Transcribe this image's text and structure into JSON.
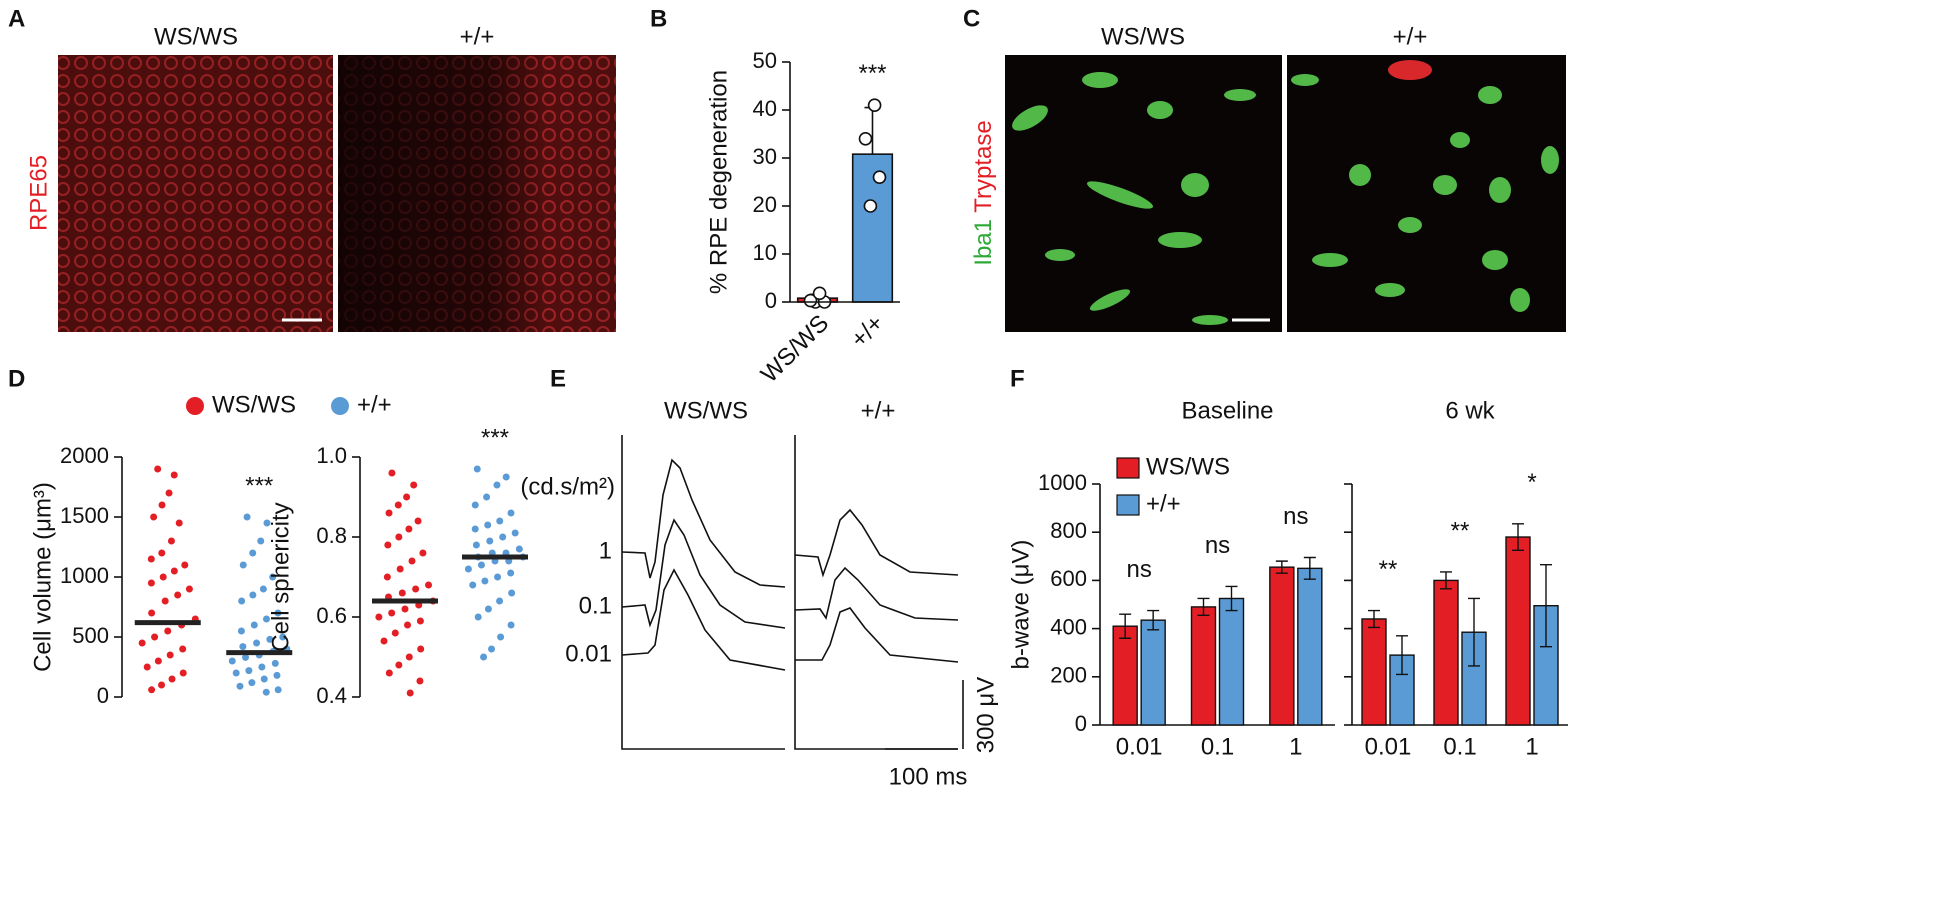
{
  "figure": {
    "panel_labels": [
      "A",
      "B",
      "C",
      "D",
      "E",
      "F"
    ],
    "A": {
      "titles": [
        "WS/WS",
        "+/+"
      ],
      "stain": "RPE65"
    },
    "C": {
      "titles": [
        "WS/WS",
        "+/+"
      ],
      "stain_green": "Iba1",
      "stain_red": "Tryptase"
    },
    "E": {
      "titles": [
        "WS/WS",
        "+/+"
      ],
      "unit": "(cd.s/m²)",
      "intensities": [
        "1",
        "0.1",
        "0.01"
      ],
      "scale_y": "300 μV",
      "scale_x": "100 ms"
    }
  },
  "chart_data": [
    {
      "type": "bar",
      "ylabel": "% RPE degeneration",
      "categories": [
        "WS/WS",
        "+/+"
      ],
      "values": [
        0.8,
        30.8
      ],
      "errors": [
        0.8,
        9.7
      ],
      "points": [
        [
          0,
          0,
          0.3,
          1.8
        ],
        [
          20,
          26,
          34,
          41
        ]
      ],
      "colors": [
        "#e31e24",
        "#5b9bd5"
      ],
      "ylim": [
        0,
        50
      ],
      "yticks": [
        0,
        10,
        20,
        30,
        40,
        50
      ],
      "annotation": "***"
    },
    {
      "type": "strip",
      "series": [
        {
          "name": "WS/WS",
          "color": "#e31e24"
        },
        {
          "name": "+/+",
          "color": "#5b9bd5"
        }
      ],
      "subplots": [
        {
          "ylabel": "Cell volume (μm³)",
          "ylim": [
            0,
            2000
          ],
          "yticks": [
            0,
            500,
            1000,
            1500,
            2000
          ],
          "annotation": "***",
          "values": [
            [
              1900,
              1850,
              1700,
              1600,
              1500,
              1450,
              1300,
              1200,
              1150,
              1100,
              1050,
              1000,
              950,
              900,
              850,
              800,
              700,
              650,
              600,
              550,
              500,
              450,
              400,
              350,
              300,
              250,
              200,
              150,
              100,
              60
            ],
            [
              1500,
              1450,
              1300,
              1200,
              1100,
              1000,
              900,
              850,
              800,
              700,
              650,
              600,
              550,
              500,
              480,
              450,
              420,
              400,
              380,
              350,
              330,
              300,
              280,
              250,
              220,
              200,
              180,
              150,
              120,
              90,
              60,
              40
            ]
          ],
          "means": [
            620,
            370
          ]
        },
        {
          "ylabel": "Cell sphericity",
          "ylim": [
            0.4,
            1
          ],
          "yticks": [
            0.4,
            0.6,
            0.8,
            {
              "value": 1,
              "label": "1.0"
            }
          ],
          "annotation": "***",
          "values": [
            [
              0.96,
              0.93,
              0.9,
              0.88,
              0.86,
              0.84,
              0.82,
              0.8,
              0.78,
              0.76,
              0.74,
              0.72,
              0.7,
              0.68,
              0.67,
              0.66,
              0.65,
              0.64,
              0.63,
              0.62,
              0.61,
              0.6,
              0.59,
              0.58,
              0.56,
              0.54,
              0.52,
              0.5,
              0.48,
              0.46,
              0.44,
              0.41
            ],
            [
              0.97,
              0.95,
              0.93,
              0.9,
              0.88,
              0.86,
              0.84,
              0.83,
              0.82,
              0.81,
              0.8,
              0.79,
              0.78,
              0.77,
              0.76,
              0.76,
              0.75,
              0.75,
              0.74,
              0.74,
              0.73,
              0.72,
              0.71,
              0.7,
              0.69,
              0.68,
              0.66,
              0.64,
              0.62,
              0.6,
              0.58,
              0.55,
              0.52,
              0.5
            ]
          ],
          "means": [
            0.64,
            0.75
          ]
        }
      ]
    },
    {
      "type": "grouped-bar",
      "ylabel": "b-wave (μV)",
      "categories": [
        "0.01",
        "0.1",
        "1"
      ],
      "series": [
        {
          "name": "WS/WS",
          "color": "#e31e24"
        },
        {
          "name": "+/+",
          "color": "#5b9bd5"
        }
      ],
      "ylim": [
        0,
        1000
      ],
      "yticks": [
        0,
        200,
        400,
        600,
        800,
        1000
      ],
      "subplots": [
        {
          "title": "Baseline",
          "values": [
            [
              410,
              490,
              655
            ],
            [
              435,
              525,
              650
            ]
          ],
          "errors": [
            [
              50,
              35,
              25
            ],
            [
              40,
              50,
              45
            ]
          ],
          "annotations": [
            "ns",
            "ns",
            "ns"
          ]
        },
        {
          "title": "6 wk",
          "values": [
            [
              440,
              600,
              780
            ],
            [
              290,
              385,
              495
            ]
          ],
          "errors": [
            [
              35,
              35,
              55
            ],
            [
              80,
              140,
              170
            ]
          ],
          "annotations": [
            "**",
            "**",
            "*"
          ]
        }
      ]
    }
  ]
}
